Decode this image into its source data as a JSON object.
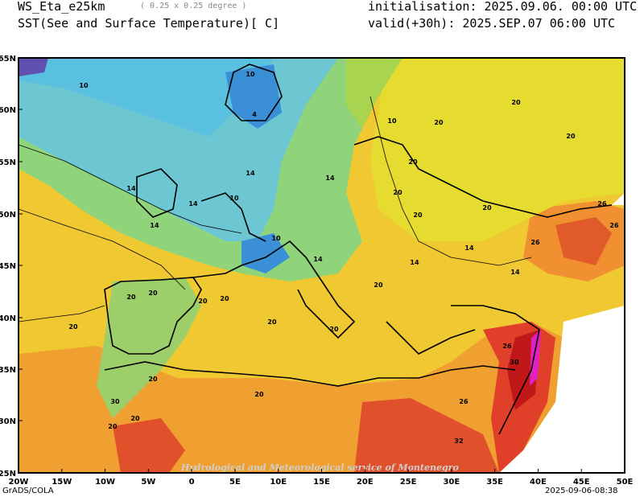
{
  "header": {
    "model": "WS_Eta_e25km",
    "resolution": "( 0.25 x 0.25 degree )",
    "variable": "SST(See and Surface Temperature)[ C]",
    "initialisation": "initialisation: 2025.09.06. 00:00 UTC",
    "valid": "valid(+30h): 2025.SEP.07 06:00 UTC"
  },
  "footer": {
    "software": "GrADS/COLA",
    "timestamp": "2025-09-06-08:38",
    "watermark": "Hydrological and Meteorological service of Montenegro"
  },
  "axes": {
    "lat_labels": [
      "65N",
      "60N",
      "55N",
      "50N",
      "45N",
      "40N",
      "35N",
      "30N",
      "25N"
    ],
    "lon_labels": [
      "20W",
      "15W",
      "10W",
      "5W",
      "0",
      "5E",
      "10E",
      "15E",
      "20E",
      "25E",
      "30E",
      "35E",
      "40E",
      "45E",
      "50E"
    ]
  },
  "contour_labels": [
    "10",
    "10",
    "4",
    "10",
    "14",
    "14",
    "14",
    "14",
    "14",
    "10",
    "10",
    "14",
    "20",
    "20",
    "20",
    "20",
    "20",
    "20",
    "20",
    "14",
    "14",
    "14",
    "20",
    "20",
    "20",
    "20",
    "20",
    "20",
    "20",
    "20",
    "20",
    "26",
    "26",
    "26",
    "26",
    "26",
    "30",
    "32",
    "30",
    "20",
    "20",
    "20"
  ],
  "colors": {
    "cold": "#3a8fd6",
    "cool": "#6cc7d2",
    "mild": "#8fd47a",
    "warm": "#e6dc30",
    "hot": "#f0a030",
    "veryhot": "#e0402a",
    "extreme": "#c01818"
  }
}
